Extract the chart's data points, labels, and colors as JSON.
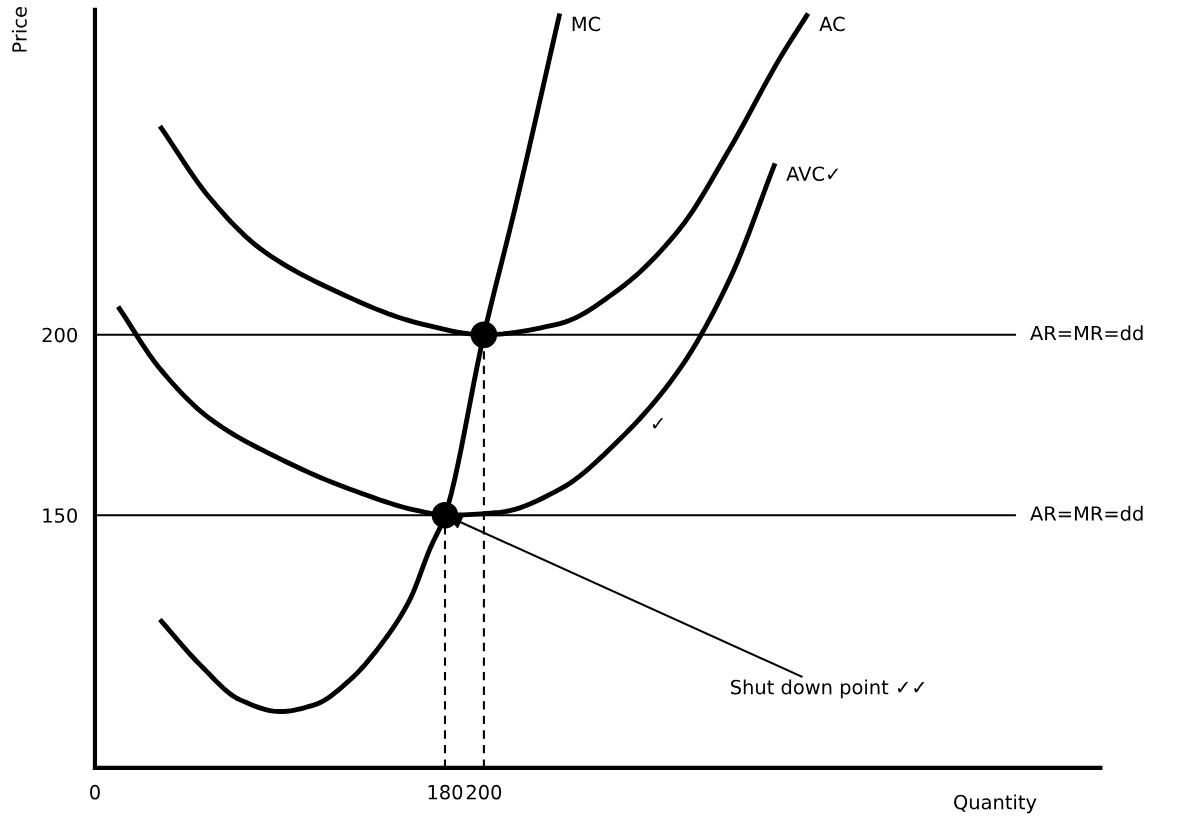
{
  "chart_data": {
    "type": "line",
    "xlabel": "Quantity",
    "ylabel": "Price",
    "xlim": [
      0,
      517
    ],
    "ylim": [
      80,
      290
    ],
    "xticks": [
      0,
      180,
      200
    ],
    "yticks": [
      150,
      200
    ],
    "grid": false,
    "legend": false,
    "marker": "none",
    "line_style": "solid",
    "series": [
      {
        "name": "MC",
        "color": "#000000",
        "x": [
          33.4,
          54.0,
          74.4,
          95.2,
          113.1,
          131.2,
          149.1,
          162.0,
          172.2,
          180,
          200,
          216,
          239
        ],
        "values": [
          121.1,
          108.6,
          98.9,
          95.6,
          97.5,
          104.4,
          115.6,
          126.7,
          140.6,
          150,
          200,
          235,
          289
        ]
      },
      {
        "name": "AC",
        "color": "#000000",
        "x": [
          33.4,
          59.2,
          84.9,
          120.9,
          167.2,
          200,
          239.1,
          270.0,
          300.8,
          326.6,
          352.3,
          366.7
        ],
        "values": [
          257.8,
          237.8,
          223.9,
          212.8,
          203.1,
          200,
          203.1,
          212.8,
          229.4,
          251.7,
          276.7,
          289
        ]
      },
      {
        "name": "AVC✓",
        "color": "#000000",
        "x": [
          11.9,
          33.4,
          59.2,
          95.2,
          131.2,
          167.2,
          180,
          208.2,
          239.1,
          270.0,
          300.8,
          326.6,
          349.7
        ],
        "values": [
          207.8,
          190.6,
          176.7,
          165.6,
          157.2,
          151.1,
          150,
          150.8,
          157.2,
          171.1,
          190.6,
          215.6,
          247.5
        ]
      },
      {
        "color": "#000000",
        "line_style": "dashed",
        "x": [
          180,
          180
        ],
        "values": [
          80,
          150
        ]
      },
      {
        "color": "#000000",
        "line_style": "dashed",
        "x": [
          200,
          200
        ],
        "values": [
          80,
          200
        ]
      },
      {
        "type": "scatter",
        "color": "#000000",
        "marker": "circle",
        "x": [
          180,
          200
        ],
        "values": [
          150,
          200
        ]
      }
    ],
    "ref_lines": [
      {
        "axis": "y",
        "value": 200,
        "label": "AR=MR=dd",
        "color": "#000000"
      },
      {
        "axis": "y",
        "value": 150,
        "label": "AR=MR=dd",
        "color": "#000000"
      }
    ],
    "annotations": [
      "✓",
      {
        "text": "Shut down point ✓✓",
        "x": 180,
        "y": 150
      }
    ]
  }
}
